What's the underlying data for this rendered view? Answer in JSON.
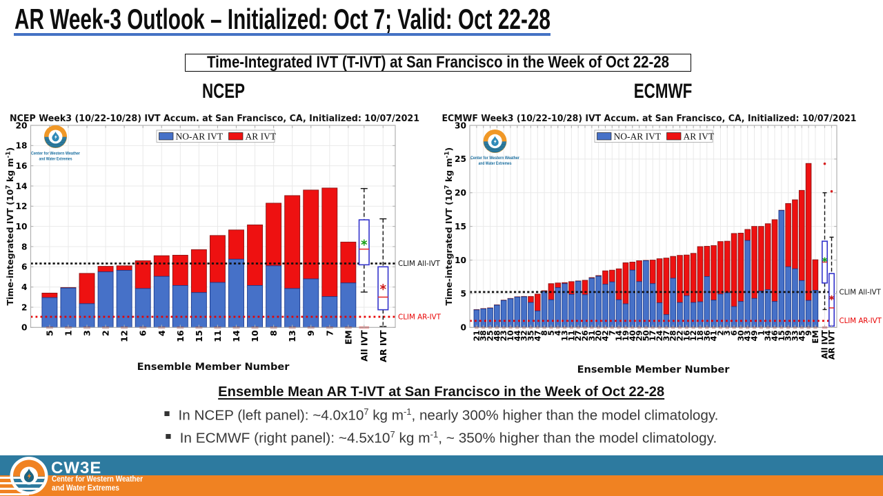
{
  "slide": {
    "title": "AR Week-3 Outlook – Initialized: Oct 7; Valid: Oct 22-28",
    "subtitle_box": "Time-Integrated IVT (T-IVT) at San Francisco in the Week of Oct 22-28",
    "panel_headers": [
      "NCEP",
      "ECMWF"
    ],
    "accent_underline_color": "#4472c4"
  },
  "chart_data": [
    {
      "type": "bar",
      "stacked": true,
      "model": "NCEP",
      "title": "NCEP Week3 (10/22-10/28) IVT Accum. at San Francisco, CA, Initialized: 10/07/2021",
      "xlabel": "Ensemble Member Number",
      "ylabel_segments": [
        {
          "t": "Time-integrated IVT (10"
        },
        {
          "t": "7",
          "sup": true
        },
        {
          "t": " kg m"
        },
        {
          "t": "-1",
          "sup": true
        },
        {
          "t": ")"
        }
      ],
      "ylim": [
        0,
        20
      ],
      "yticks": [
        0,
        2,
        4,
        6,
        8,
        10,
        12,
        14,
        16,
        18,
        20
      ],
      "grid": true,
      "legend": {
        "position": "upper center",
        "entries": [
          {
            "label": "NO-AR IVT",
            "color": "#4671c8"
          },
          {
            "label": "AR IVT",
            "color": "#ee1111"
          }
        ]
      },
      "categories": [
        "5",
        "1",
        "3",
        "2",
        "12",
        "6",
        "4",
        "16",
        "15",
        "11",
        "14",
        "10",
        "8",
        "13",
        "9",
        "7",
        "EM"
      ],
      "series": [
        {
          "name": "NO-AR IVT",
          "color": "#4671c8",
          "values": [
            2.95,
            3.9,
            2.35,
            5.5,
            5.65,
            3.85,
            5.05,
            4.15,
            3.45,
            4.45,
            6.75,
            4.15,
            6.1,
            3.85,
            4.8,
            3.05,
            4.4
          ]
        },
        {
          "name": "AR IVT",
          "color": "#ee1111",
          "values": [
            0.45,
            0.05,
            3.0,
            0.55,
            0.45,
            2.75,
            2.05,
            3.0,
            4.25,
            4.65,
            2.9,
            6.0,
            6.2,
            9.2,
            8.8,
            10.75,
            4.05
          ]
        }
      ],
      "clim_lines": [
        {
          "label": "CLIM All-IVT",
          "value": 6.33,
          "color": "#111111"
        },
        {
          "label": "CLIM AR-IVT",
          "value": 1.05,
          "color": "#e80000"
        }
      ],
      "boxplots": [
        {
          "label": "All IVT",
          "whisker_low": 3.5,
          "q1": 6.2,
          "median": 7.75,
          "q3": 10.65,
          "whisker_high": 13.75,
          "mean": 8.4,
          "mean_marker_color": "#18a018",
          "fliers": [],
          "zero_dash": true
        },
        {
          "label": "AR IVT",
          "whisker_low": 0.1,
          "q1": 1.75,
          "median": 3.0,
          "q3": 6.0,
          "whisker_high": 10.75,
          "mean": 4.0,
          "mean_marker_color": "#cc1818",
          "fliers": [],
          "zero_dash": false
        }
      ],
      "logo_text": [
        "Center for Western Weather",
        "and Water Extremes"
      ]
    },
    {
      "type": "bar",
      "stacked": true,
      "model": "ECMWF",
      "title": "ECMWF Week3 (10/22-10/28) IVT Accum. at San Francisco, CA, Initialized: 10/07/2021",
      "xlabel": "Ensemble Member Number",
      "ylabel_segments": [
        {
          "t": "Time-integrated IVT (10"
        },
        {
          "t": "7",
          "sup": true
        },
        {
          "t": " kg m"
        },
        {
          "t": "-1",
          "sup": true
        },
        {
          "t": ")"
        }
      ],
      "ylim": [
        0,
        30
      ],
      "yticks": [
        0,
        5,
        10,
        15,
        20,
        25,
        30
      ],
      "grid": true,
      "legend": {
        "position": "upper center",
        "entries": [
          {
            "label": "NO-AR IVT",
            "color": "#4671c8"
          },
          {
            "label": "AR IVT",
            "color": "#ee1111"
          }
        ]
      },
      "categories": [
        "21",
        "38",
        "25",
        "48",
        "23",
        "10",
        "44",
        "32",
        "35",
        "47",
        "8",
        "5",
        "4",
        "13",
        "11",
        "27",
        "26",
        "31",
        "20",
        "42",
        "7",
        "14",
        "19",
        "40",
        "29",
        "50",
        "17",
        "24",
        "37",
        "28",
        "22",
        "16",
        "12",
        "18",
        "36",
        "41",
        "2",
        "3",
        "6",
        "30",
        "43",
        "49",
        "1",
        "34",
        "46",
        "15",
        "39",
        "33",
        "45",
        "9",
        "EM"
      ],
      "series": [
        {
          "name": "NO-AR IVT",
          "color": "#4671c8",
          "values": [
            2.6,
            2.75,
            2.85,
            3.3,
            4.0,
            4.25,
            4.5,
            4.55,
            3.7,
            2.45,
            5.35,
            4.1,
            5.9,
            6.5,
            4.9,
            6.85,
            4.85,
            7.3,
            7.6,
            6.4,
            6.75,
            4.1,
            3.5,
            8.5,
            6.8,
            9.9,
            6.5,
            3.65,
            1.9,
            7.3,
            3.7,
            4.7,
            3.7,
            3.8,
            7.55,
            4.05,
            4.95,
            5.15,
            3.1,
            3.85,
            12.9,
            4.3,
            5.4,
            5.6,
            3.85,
            17.35,
            9.0,
            8.7,
            6.95,
            4.0,
            5.5
          ]
        },
        {
          "name": "AR IVT",
          "color": "#ee1111",
          "values": [
            0.05,
            0.05,
            0.05,
            0.05,
            0.05,
            0.05,
            0.05,
            0.05,
            0.9,
            2.5,
            0.1,
            2.4,
            0.7,
            0.15,
            1.9,
            0.05,
            2.15,
            0.1,
            0.1,
            2.0,
            1.75,
            4.6,
            6.1,
            1.2,
            3.1,
            0.05,
            3.5,
            6.55,
            8.4,
            3.25,
            7.0,
            6.05,
            7.3,
            8.2,
            4.5,
            8.1,
            7.8,
            7.65,
            10.85,
            10.15,
            1.65,
            10.7,
            9.6,
            9.8,
            12.15,
            0.05,
            9.4,
            10.25,
            13.4,
            20.35,
            4.55
          ]
        }
      ],
      "clim_lines": [
        {
          "label": "CLIM All-IVT",
          "value": 5.26,
          "color": "#111111"
        },
        {
          "label": "CLIM AR-IVT",
          "value": 0.98,
          "color": "#e80000"
        }
      ],
      "boxplots": [
        {
          "label": "All IVT",
          "whisker_low": 2.65,
          "q1": 6.6,
          "median": 9.7,
          "q3": 12.8,
          "whisker_high": 20.0,
          "mean": 10.05,
          "mean_marker_color": "#18a018",
          "fliers": [
            24.3
          ],
          "zero_dash": true
        },
        {
          "label": "AR IVT",
          "whisker_low": null,
          "q1": 0.2,
          "median": 2.9,
          "q3": 8.0,
          "whisker_high": 13.4,
          "mean": 4.4,
          "mean_marker_color": "#cc1818",
          "fliers": [
            20.2
          ],
          "zero_dash": false
        }
      ],
      "logo_text": [
        "Center for Western Weather",
        "and Water Extremes"
      ]
    }
  ],
  "summary": {
    "heading": "Ensemble Mean AR T-IVT at San Francisco in the Week of Oct 22-28",
    "bullets": [
      {
        "segments": [
          {
            "t": "In NCEP (left panel): ~4.0x10"
          },
          {
            "t": "7",
            "sup": true
          },
          {
            "t": " kg m"
          },
          {
            "t": "-1",
            "sup": true
          },
          {
            "t": ", nearly 300% higher than the model climatology."
          }
        ]
      },
      {
        "segments": [
          {
            "t": "In ECMWF (right panel): ~4.5x10"
          },
          {
            "t": "7",
            "sup": true
          },
          {
            "t": " kg m"
          },
          {
            "t": "-1",
            "sup": true
          },
          {
            "t": ", ~ 350% higher than the model climatology."
          }
        ]
      }
    ]
  },
  "footer": {
    "org_acronym": "CW3E",
    "org_name_lines": [
      "Center for Western Weather",
      "and Water Extremes"
    ],
    "teal_color": "#2d7a9f",
    "orange_color": "#f08222"
  },
  "colors": {
    "bar_blue": "#4671c8",
    "bar_blue_edge": "#1a3a8f",
    "bar_red": "#ee1111",
    "bar_red_edge": "#8b1515",
    "grid": "#e9e9e9",
    "spine": "#b0b0b0",
    "box_stroke": "#3333cc",
    "median": "#e83030",
    "flier": "#d62020"
  }
}
